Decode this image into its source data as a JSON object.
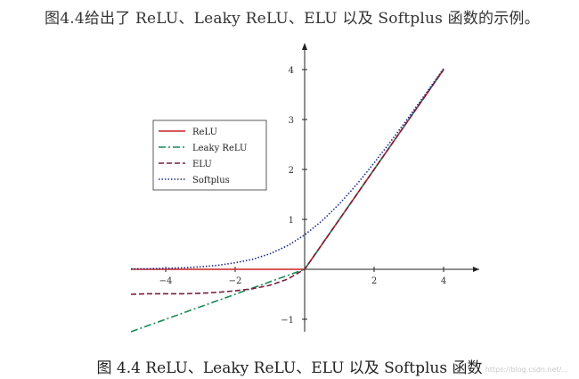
{
  "intro_text": "图4.4给出了 ReLU、Leaky ReLU、ELU 以及 Softplus 函数的示例。",
  "caption": "图 4.4 ReLU、Leaky ReLU、ELU 以及 Softplus 函数",
  "watermark": "https://blog.csdn.net/...",
  "chart_data": {
    "type": "line",
    "title": "",
    "xlabel": "",
    "ylabel": "",
    "xlim": [
      -5,
      5
    ],
    "ylim": [
      -1.3,
      4.5
    ],
    "xticks": [
      -4,
      -2,
      2,
      4
    ],
    "yticks": [
      -1,
      1,
      2,
      3,
      4
    ],
    "x": [
      -5,
      -4.5,
      -4,
      -3.5,
      -3,
      -2.5,
      -2,
      -1.5,
      -1,
      -0.5,
      0,
      0.5,
      1,
      1.5,
      2,
      2.5,
      3,
      3.5,
      4
    ],
    "series": [
      {
        "name": "ReLU",
        "color": "#cc2222",
        "dash": "solid",
        "values": [
          0,
          0,
          0,
          0,
          0,
          0,
          0,
          0,
          0,
          0,
          0,
          0.5,
          1,
          1.5,
          2,
          2.5,
          3,
          3.5,
          4
        ]
      },
      {
        "name": "Leaky ReLU",
        "color": "#1a8a55",
        "dash": "dashdot",
        "values": [
          -1.25,
          -1.125,
          -1.0,
          -0.875,
          -0.75,
          -0.625,
          -0.5,
          -0.375,
          -0.25,
          -0.125,
          0,
          0.5,
          1,
          1.5,
          2,
          2.5,
          3,
          3.5,
          4
        ]
      },
      {
        "name": "ELU",
        "color": "#7a1f3d",
        "dash": "dashed",
        "values": [
          -0.5,
          -0.49,
          -0.49,
          -0.49,
          -0.48,
          -0.46,
          -0.43,
          -0.39,
          -0.32,
          -0.2,
          0,
          0.5,
          1,
          1.5,
          2,
          2.5,
          3,
          3.5,
          4
        ]
      },
      {
        "name": "Softplus",
        "color": "#1c2a8a",
        "dash": "dotted",
        "values": [
          0.01,
          0.01,
          0.02,
          0.03,
          0.05,
          0.08,
          0.13,
          0.2,
          0.31,
          0.47,
          0.69,
          0.97,
          1.31,
          1.7,
          2.13,
          2.58,
          3.05,
          3.53,
          4.02
        ]
      }
    ],
    "legend_position": "top-left",
    "grid": false
  }
}
